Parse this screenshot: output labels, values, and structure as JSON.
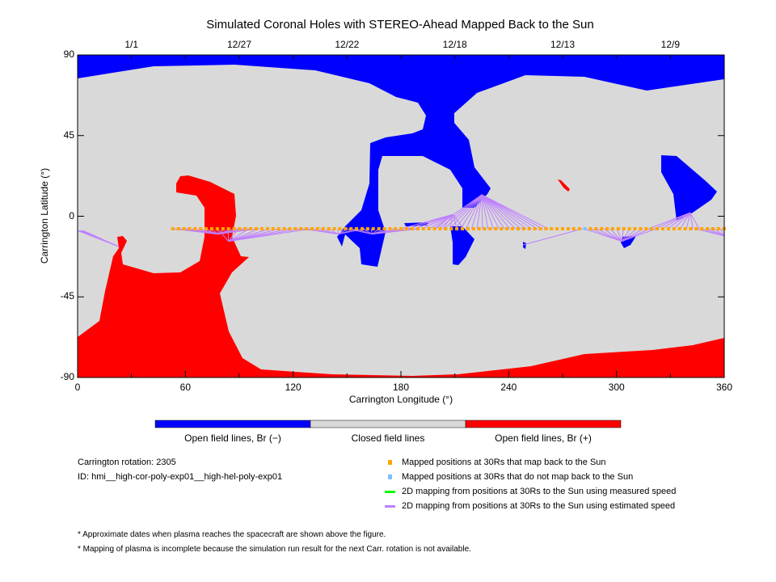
{
  "chart_data": {
    "type": "map",
    "title": "Simulated Coronal Holes with STEREO-Ahead Mapped Back to the Sun",
    "xlabel": "Carrington Longitude (°)",
    "ylabel": "Carrington Latitude (°)",
    "xlim": [
      0,
      360
    ],
    "ylim": [
      -90,
      90
    ],
    "xticks": [
      "0",
      "60",
      "120",
      "180",
      "240",
      "300",
      "360"
    ],
    "yticks": [
      "90",
      "45",
      "0",
      "-45",
      "-90"
    ],
    "top_dates": [
      {
        "label": "1/1",
        "lon": 30
      },
      {
        "label": "12/27",
        "lon": 90
      },
      {
        "label": "12/22",
        "lon": 150
      },
      {
        "label": "12/18",
        "lon": 210
      },
      {
        "label": "12/13",
        "lon": 270
      },
      {
        "label": "12/9",
        "lon": 330
      }
    ],
    "colorbar": [
      "Open field lines, Br (−)",
      "Closed field lines",
      "Open field lines, Br (+)"
    ],
    "colors": {
      "neg": "#0000ff",
      "closed": "#d9d9d9",
      "pos": "#ff0000",
      "mapped": "#ffa500",
      "unmapped": "#80bfff",
      "measured": "#00ff00",
      "estimated": "#bf80ff"
    },
    "mapped_points": {
      "lat": -7,
      "lon_start": 53,
      "lon_end": 360,
      "step": 3.1,
      "unmapped_lons": [
        281
      ]
    },
    "fans": [
      {
        "foot": [
          23,
          -17
        ],
        "src_lon": [
          0,
          3
        ],
        "src_lat": -8,
        "n": 5
      },
      {
        "foot": [
          78,
          -10
        ],
        "src_lon": [
          53,
          100
        ],
        "src_lat": -7,
        "n": 14
      },
      {
        "foot": [
          84,
          -14
        ],
        "src_lon": [
          78,
          130
        ],
        "src_lat": -7,
        "n": 10
      },
      {
        "foot": [
          145,
          -10
        ],
        "src_lon": [
          125,
          160
        ],
        "src_lat": -7,
        "n": 8
      },
      {
        "foot": [
          164,
          -10
        ],
        "src_lon": [
          150,
          190
        ],
        "src_lat": -7,
        "n": 10
      },
      {
        "foot": [
          209,
          1
        ],
        "src_lon": [
          180,
          215
        ],
        "src_lat": -7,
        "n": 10
      },
      {
        "foot": [
          225,
          12
        ],
        "src_lon": [
          198,
          262
        ],
        "src_lat": -7,
        "n": 22
      },
      {
        "foot": [
          248,
          -16
        ],
        "src_lon": [
          281,
          281
        ],
        "src_lat": -7,
        "n": 1
      },
      {
        "foot": [
          303,
          -14
        ],
        "src_lon": [
          282,
          322
        ],
        "src_lat": -7,
        "n": 12
      },
      {
        "foot": [
          341,
          2
        ],
        "src_lon": [
          318,
          346
        ],
        "src_lat": -7,
        "n": 9
      },
      {
        "foot": [
          360,
          -11
        ],
        "src_lon": [
          344,
          358
        ],
        "src_lat": -7,
        "n": 5
      }
    ]
  },
  "info": {
    "rotation": "Carrington rotation: 2305",
    "id": "ID: hmi__high-cor-poly-exp01__high-hel-poly-exp01"
  },
  "legend": [
    "Mapped positions at 30Rs that map back to the Sun",
    "Mapped positions at 30Rs that do not map back to the Sun",
    "2D mapping from positions at 30Rs to the Sun using measured speed",
    "2D mapping from positions at 30Rs to the Sun using estimated speed"
  ],
  "notes": [
    "* Approximate dates when plasma reaches the spacecraft are shown above the figure.",
    "* Mapping of plasma is incomplete because the simulation run result for the next Carr. rotation is not available."
  ]
}
